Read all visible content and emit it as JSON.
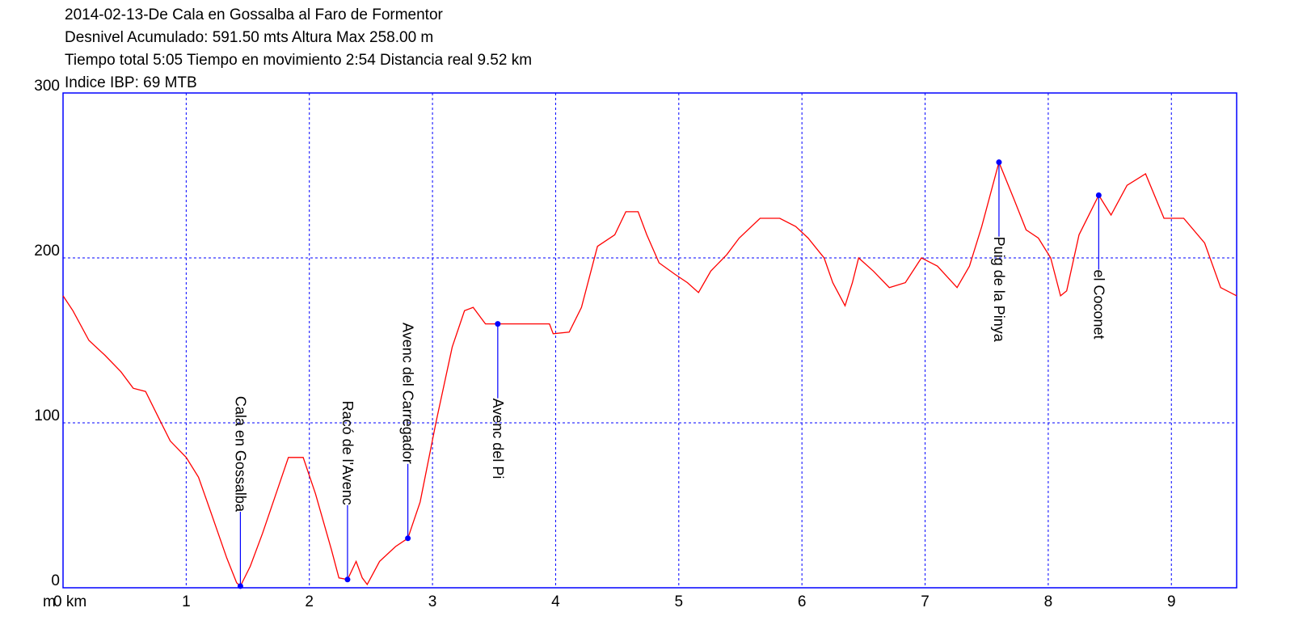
{
  "chart_data": {
    "type": "line",
    "title_lines": [
      "2014-02-13-De Cala en Gossalba al Faro de Formentor",
      "Desnivel Acumulado: 591.50 mts  Altura Max 258.00 m",
      "Tiempo total 5:05 Tiempo en movimiento 2:54 Distancia real 9.52 km",
      "Indice IBP: 69 MTB"
    ],
    "y_label": "m",
    "x": [
      0,
      0.08,
      0.21,
      0.34,
      0.47,
      0.57,
      0.67,
      0.77,
      0.87,
      1.0,
      1.1,
      1.19,
      1.33,
      1.41,
      1.44,
      1.52,
      1.62,
      1.72,
      1.83,
      1.95,
      2.05,
      2.18,
      2.24,
      2.31,
      2.38,
      2.43,
      2.47,
      2.57,
      2.7,
      2.8,
      2.9,
      3.03,
      3.16,
      3.26,
      3.33,
      3.43,
      3.53,
      3.95,
      3.98,
      4.11,
      4.21,
      4.34,
      4.48,
      4.57,
      4.67,
      4.74,
      4.84,
      4.97,
      5.07,
      5.16,
      5.26,
      5.39,
      5.49,
      5.66,
      5.82,
      5.95,
      6.05,
      6.18,
      6.25,
      6.35,
      6.41,
      6.46,
      6.58,
      6.71,
      6.84,
      6.97,
      7.1,
      7.26,
      7.36,
      7.46,
      7.6,
      7.72,
      7.82,
      7.92,
      8.02,
      8.1,
      8.15,
      8.25,
      8.41,
      8.51,
      8.64,
      8.79,
      8.94,
      9.1,
      9.27,
      9.4,
      9.53
    ],
    "values": [
      177,
      168,
      150,
      141,
      131,
      121,
      119,
      104,
      89,
      79,
      67,
      48,
      18,
      3,
      1,
      13,
      33,
      55,
      79,
      79,
      57,
      23,
      6,
      5,
      16,
      6,
      2,
      16,
      25,
      30,
      52,
      101,
      146,
      168,
      170,
      160,
      160,
      160,
      154,
      155,
      170,
      207,
      214,
      228,
      228,
      214,
      197,
      190,
      185,
      179,
      192,
      202,
      212,
      224,
      224,
      219,
      212,
      200,
      185,
      171,
      185,
      200,
      192,
      182,
      185,
      200,
      195,
      182,
      195,
      219,
      258,
      236,
      217,
      212,
      200,
      177,
      180,
      214,
      238,
      226,
      244,
      251,
      224,
      224,
      209,
      182,
      177
    ],
    "color": "#ff0000",
    "xlim": [
      0,
      9.53
    ],
    "ylim": [
      0,
      300
    ],
    "xticks": [
      {
        "value": 0,
        "label": "0 km"
      },
      1,
      2,
      3,
      4,
      5,
      6,
      7,
      8,
      9
    ],
    "yticks": [
      0,
      100,
      200,
      300
    ],
    "grid": true,
    "grid_color": "#0000ff",
    "annotation_color": "#0000ff",
    "annotations": [
      {
        "x": 1.44,
        "y": 1,
        "label": "Cala en Gossalba"
      },
      {
        "x": 2.31,
        "y": 5,
        "label": "Racó de l'Avenc"
      },
      {
        "x": 2.8,
        "y": 30,
        "label": "Avenc del Carregador"
      },
      {
        "x": 3.53,
        "y": 160,
        "label": "Avenc del Pi"
      },
      {
        "x": 7.6,
        "y": 258,
        "label": "Puig de la Pinya"
      },
      {
        "x": 8.41,
        "y": 238,
        "label": "el Coconet"
      }
    ]
  }
}
